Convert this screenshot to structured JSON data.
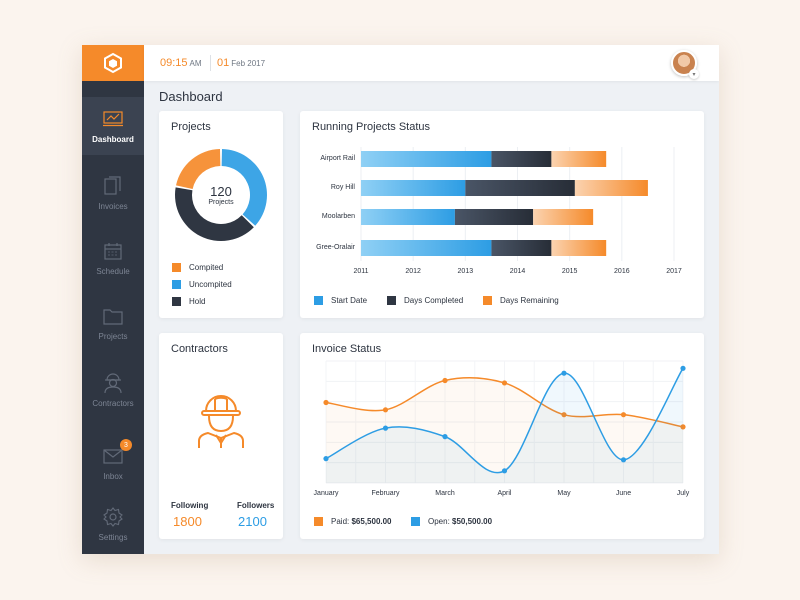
{
  "colors": {
    "accent": "#f58a2a",
    "blue": "#2d9de4",
    "dark": "#2f3642",
    "sidebar": "#2f3642"
  },
  "header": {
    "time": "09:15",
    "ampm": "AM",
    "day": "01",
    "month_year": "Feb 2017"
  },
  "sidebar": {
    "items": [
      {
        "label": "Dashboard",
        "icon": "chart-icon",
        "active": true
      },
      {
        "label": "Invoices",
        "icon": "document-icon"
      },
      {
        "label": "Schedule",
        "icon": "calendar-icon"
      },
      {
        "label": "Projects",
        "icon": "folder-icon"
      },
      {
        "label": "Contractors",
        "icon": "worker-icon"
      },
      {
        "label": "Inbox",
        "icon": "mail-icon",
        "badge": "3"
      },
      {
        "label": "Settings",
        "icon": "gear-icon"
      }
    ]
  },
  "page": {
    "title": "Dashboard"
  },
  "projects": {
    "title": "Projects",
    "center_value": "120",
    "center_label": "Projects",
    "legend": [
      {
        "label": "Compited",
        "color": "#f58a2a"
      },
      {
        "label": "Uncompited",
        "color": "#2d9de4"
      },
      {
        "label": "Hold",
        "color": "#2f3642"
      }
    ]
  },
  "running": {
    "title": "Running Projects Status",
    "legend": [
      {
        "label": "Start Date",
        "color": "#2d9de4"
      },
      {
        "label": "Days Completed",
        "color": "#2f3642"
      },
      {
        "label": "Days Remaining",
        "color": "#f58a2a"
      }
    ]
  },
  "contractors": {
    "title": "Contractors",
    "following_label": "Following",
    "following_value": "1800",
    "followers_label": "Followers",
    "followers_value": "2100"
  },
  "invoice": {
    "title": "Invoice Status",
    "paid_label": "Paid:",
    "paid_value": "$65,500.00",
    "open_label": "Open:",
    "open_value": "$50,500.00"
  },
  "chart_data": [
    {
      "type": "pie",
      "categories": [
        "Compited",
        "Uncompited",
        "Hold"
      ],
      "values": [
        22,
        37,
        41
      ]
    },
    {
      "type": "bar",
      "title": "Running Projects Status",
      "categories": [
        "Airport Rail",
        "Roy Hill",
        "Moolarben",
        "Gree-Oralair"
      ],
      "x_ticks": [
        "2011",
        "2012",
        "2013",
        "2014",
        "2015",
        "2016",
        "2017"
      ],
      "xlim": [
        2011,
        2017
      ],
      "series": [
        {
          "name": "Start Date",
          "values": [
            2013.5,
            2013.0,
            2012.8,
            2013.5
          ]
        },
        {
          "name": "Days Completed",
          "values": [
            1.15,
            2.1,
            1.5,
            1.15
          ]
        },
        {
          "name": "Days Remaining",
          "values": [
            1.05,
            1.4,
            1.15,
            1.05
          ]
        }
      ]
    },
    {
      "type": "line",
      "title": "Invoice Status",
      "categories": [
        "January",
        "February",
        "March",
        "April",
        "May",
        "June",
        "July"
      ],
      "ylim": [
        0,
        100
      ],
      "series": [
        {
          "name": "Paid",
          "values": [
            66,
            60,
            84,
            82,
            56,
            56,
            46
          ]
        },
        {
          "name": "Open",
          "values": [
            20,
            45,
            38,
            10,
            90,
            19,
            94
          ]
        }
      ]
    }
  ]
}
